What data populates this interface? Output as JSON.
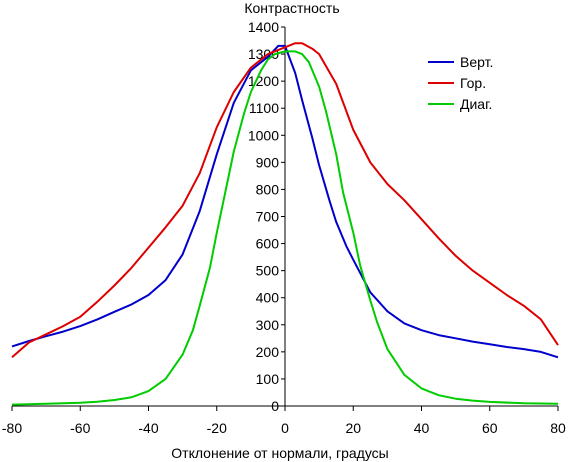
{
  "chart_data": {
    "type": "line",
    "title": "",
    "ylabel": "Контрастность",
    "xlabel": "Отклонение от нормали, градусы",
    "xlim": [
      -80,
      80
    ],
    "ylim": [
      0,
      1400
    ],
    "xticks": [
      -80,
      -60,
      -40,
      -20,
      0,
      20,
      40,
      60,
      80
    ],
    "yticks": [
      0,
      100,
      200,
      300,
      400,
      500,
      600,
      700,
      800,
      900,
      1000,
      1100,
      1200,
      1300,
      1400
    ],
    "grid": false,
    "legend_position": "top-right",
    "series": [
      {
        "name": "Верт.",
        "color": "#0000cc",
        "x": [
          -80,
          -75,
          -70,
          -65,
          -60,
          -55,
          -50,
          -45,
          -40,
          -35,
          -30,
          -25,
          -20,
          -15,
          -10,
          -5,
          -2,
          0,
          3,
          5,
          8,
          10,
          13,
          15,
          18,
          20,
          25,
          30,
          35,
          40,
          45,
          50,
          55,
          60,
          65,
          70,
          75,
          80
        ],
        "y": [
          220,
          240,
          258,
          275,
          295,
          320,
          348,
          375,
          410,
          465,
          560,
          720,
          930,
          1120,
          1240,
          1290,
          1330,
          1330,
          1230,
          1130,
          990,
          890,
          760,
          680,
          590,
          540,
          420,
          350,
          305,
          280,
          262,
          250,
          238,
          228,
          218,
          210,
          200,
          180
        ]
      },
      {
        "name": "Гор.",
        "color": "#dd0000",
        "x": [
          -80,
          -75,
          -70,
          -65,
          -60,
          -55,
          -50,
          -45,
          -40,
          -35,
          -30,
          -25,
          -20,
          -15,
          -10,
          -5,
          0,
          3,
          5,
          8,
          10,
          15,
          20,
          25,
          30,
          35,
          40,
          45,
          50,
          55,
          60,
          65,
          70,
          75,
          80
        ],
        "y": [
          180,
          235,
          265,
          295,
          330,
          385,
          445,
          510,
          585,
          660,
          740,
          860,
          1030,
          1160,
          1250,
          1300,
          1325,
          1340,
          1340,
          1320,
          1300,
          1190,
          1020,
          900,
          820,
          760,
          690,
          620,
          555,
          500,
          455,
          410,
          370,
          320,
          225
        ]
      },
      {
        "name": "Диаг.",
        "color": "#00cc00",
        "x": [
          -80,
          -70,
          -60,
          -55,
          -50,
          -45,
          -40,
          -35,
          -30,
          -27,
          -25,
          -22,
          -20,
          -17,
          -15,
          -12,
          -10,
          -7,
          -5,
          -3,
          0,
          3,
          5,
          7,
          10,
          12,
          15,
          17,
          20,
          22,
          25,
          27,
          30,
          35,
          40,
          45,
          50,
          55,
          60,
          70,
          80
        ],
        "y": [
          5,
          8,
          12,
          16,
          22,
          32,
          55,
          100,
          190,
          280,
          370,
          510,
          640,
          820,
          940,
          1080,
          1160,
          1240,
          1280,
          1300,
          1310,
          1310,
          1300,
          1270,
          1180,
          1090,
          930,
          790,
          640,
          520,
          390,
          310,
          210,
          115,
          65,
          40,
          27,
          20,
          15,
          10,
          8
        ]
      }
    ]
  }
}
